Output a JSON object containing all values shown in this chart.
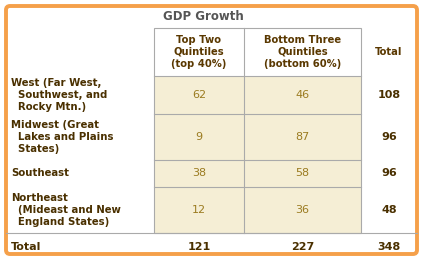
{
  "title": "GDP Growth",
  "col_headers": [
    "Top Two\nQuintiles\n(top 40%)",
    "Bottom Three\nQuintiles\n(bottom 60%)",
    "Total"
  ],
  "row_labels": [
    "West (Far West,\n  Southwest, and\n  Rocky Mtn.)",
    "Midwest (Great\n  Lakes and Plains\n  States)",
    "Southeast",
    "Northeast\n  (Mideast and New\n  England States)"
  ],
  "data": [
    [
      62,
      46,
      108
    ],
    [
      9,
      87,
      96
    ],
    [
      38,
      58,
      96
    ],
    [
      12,
      36,
      48
    ]
  ],
  "totals": [
    121,
    227,
    348
  ],
  "outer_border_color": "#F5A04A",
  "inner_border_color": "#AAAAAA",
  "data_bg": "#F5EED5",
  "title_color": "#555555",
  "header_text_color": "#5A3800",
  "row_label_color": "#4A3000",
  "data_text_color": "#9B7B20",
  "total_text_color": "#4A3000",
  "background_color": "#FFFFFF"
}
